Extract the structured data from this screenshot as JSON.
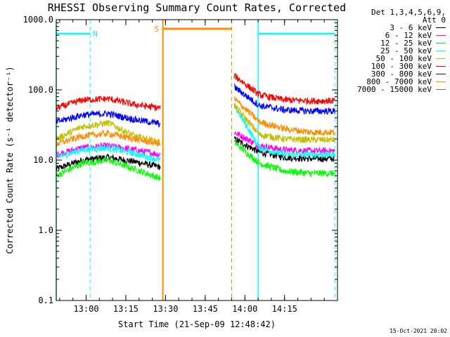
{
  "chart_data": {
    "type": "line",
    "title": "RHESSI Observing Summary Count Rates, Corrected",
    "xlabel": "Start Time (21-Sep-09 12:48:42)",
    "ylabel": "Corrected Count Rate (s⁻¹ detector⁻¹)",
    "y_scale": "log",
    "ylim": [
      0.1,
      1000
    ],
    "y_ticks": [
      0.1,
      1,
      10,
      100,
      1000
    ],
    "y_tick_labels": [
      "0.1",
      "1.0",
      "10.0",
      "100.0",
      "1000.0"
    ],
    "xlim_minutes": [
      48.7,
      155.0
    ],
    "x_ticks": [
      60,
      75,
      90,
      105,
      120,
      135
    ],
    "x_tick_labels": [
      "13:00",
      "13:15",
      "13:30",
      "13:45",
      "14:00",
      "14:15"
    ],
    "legend_header": [
      "Det 1,3,4,5,6,9,",
      "Att 0"
    ],
    "series": [
      {
        "name": "3 - 6 keV",
        "color": "#000000",
        "values_before": [
          7.5,
          10,
          11,
          9.5,
          8
        ],
        "values_after": [
          20,
          13,
          11,
          10.5,
          10.5
        ]
      },
      {
        "name": "6 - 12 keV",
        "color": "#ff00ff",
        "values_before": [
          12,
          15,
          16,
          14,
          12
        ],
        "values_after": [
          25,
          16,
          14,
          13.5,
          13.5
        ]
      },
      {
        "name": "12 - 25 keV",
        "color": "#00ff00",
        "values_before": [
          6,
          9,
          10,
          7.5,
          5.5
        ],
        "values_after": [
          18,
          9,
          7,
          6.5,
          6.5
        ]
      },
      {
        "name": "25 - 50 keV",
        "color": "#00ffff",
        "values_before": [
          11,
          14,
          15,
          12.5,
          10
        ],
        "values_after": [
          60,
          15,
          12,
          12,
          12
        ]
      },
      {
        "name": "50 - 100 keV",
        "color": "#c0c000",
        "values_before": [
          20,
          30,
          34,
          22,
          18
        ],
        "values_after": [
          60,
          23,
          20,
          19.5,
          19.5
        ]
      },
      {
        "name": "100 - 300 keV",
        "color": "#ff0000",
        "values_before": [
          55,
          72,
          75,
          62,
          55
        ],
        "values_after": [
          160,
          85,
          72,
          70,
          70
        ]
      },
      {
        "name": "300 - 800 keV",
        "color": "#0000ff",
        "values_before": [
          35,
          44,
          46,
          38,
          33
        ],
        "values_after": [
          110,
          60,
          52,
          50,
          50
        ]
      },
      {
        "name": "800 - 7000 keV",
        "color": "#ff8c00",
        "values_before": [
          17,
          22,
          24,
          20,
          17
        ],
        "values_after": [
          75,
          35,
          28,
          25,
          25
        ]
      },
      {
        "name": "7000 - 15000 keV",
        "color": "#808000",
        "values_before": [],
        "values_after": []
      }
    ],
    "regions": [
      {
        "label": "N",
        "start_minute": 48.7,
        "end_minute": 61.5,
        "color": "#00ffff"
      },
      {
        "label": "S",
        "start_minute": 89,
        "end_minute": 115,
        "color": "#ff8c00"
      },
      {
        "label": "",
        "start_minute": 125,
        "end_minute": 154,
        "color": "#00ffff"
      }
    ],
    "footer": "15-Oct-2021 20:02"
  }
}
